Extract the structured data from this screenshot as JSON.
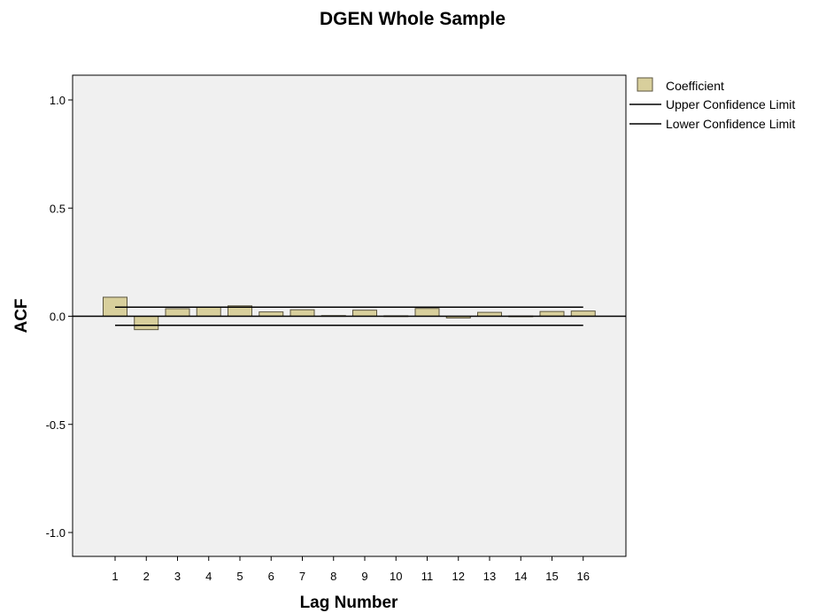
{
  "chart_data": {
    "type": "bar",
    "title": "DGEN Whole Sample",
    "xlabel": "Lag Number",
    "ylabel": "ACF",
    "ylim": [
      -1.1,
      1.1
    ],
    "yticks": [
      1.0,
      0.5,
      0.0,
      -0.5,
      -1.0
    ],
    "ytick_labels": [
      "1.0",
      "0.5",
      "0.0",
      "-0.5",
      "-1.0"
    ],
    "categories": [
      "1",
      "2",
      "3",
      "4",
      "5",
      "6",
      "7",
      "8",
      "9",
      "10",
      "11",
      "12",
      "13",
      "14",
      "15",
      "16"
    ],
    "series": [
      {
        "name": "Coefficient",
        "values": [
          0.088,
          -0.062,
          0.035,
          0.042,
          0.048,
          0.02,
          0.03,
          0.003,
          0.028,
          0.002,
          0.036,
          -0.008,
          0.018,
          0.001,
          0.022,
          0.024
        ]
      }
    ],
    "confidence_limits": {
      "upper": {
        "name": "Upper Confidence Limit",
        "value": 0.042
      },
      "lower": {
        "name": "Lower Confidence Limit",
        "value": -0.042
      }
    },
    "legend_position": "right",
    "grid": false,
    "colors": {
      "bar_fill": "#d8cf9c",
      "bar_stroke": "#5c5640",
      "plot_background": "#f0f0f0",
      "line": "#000000"
    }
  }
}
